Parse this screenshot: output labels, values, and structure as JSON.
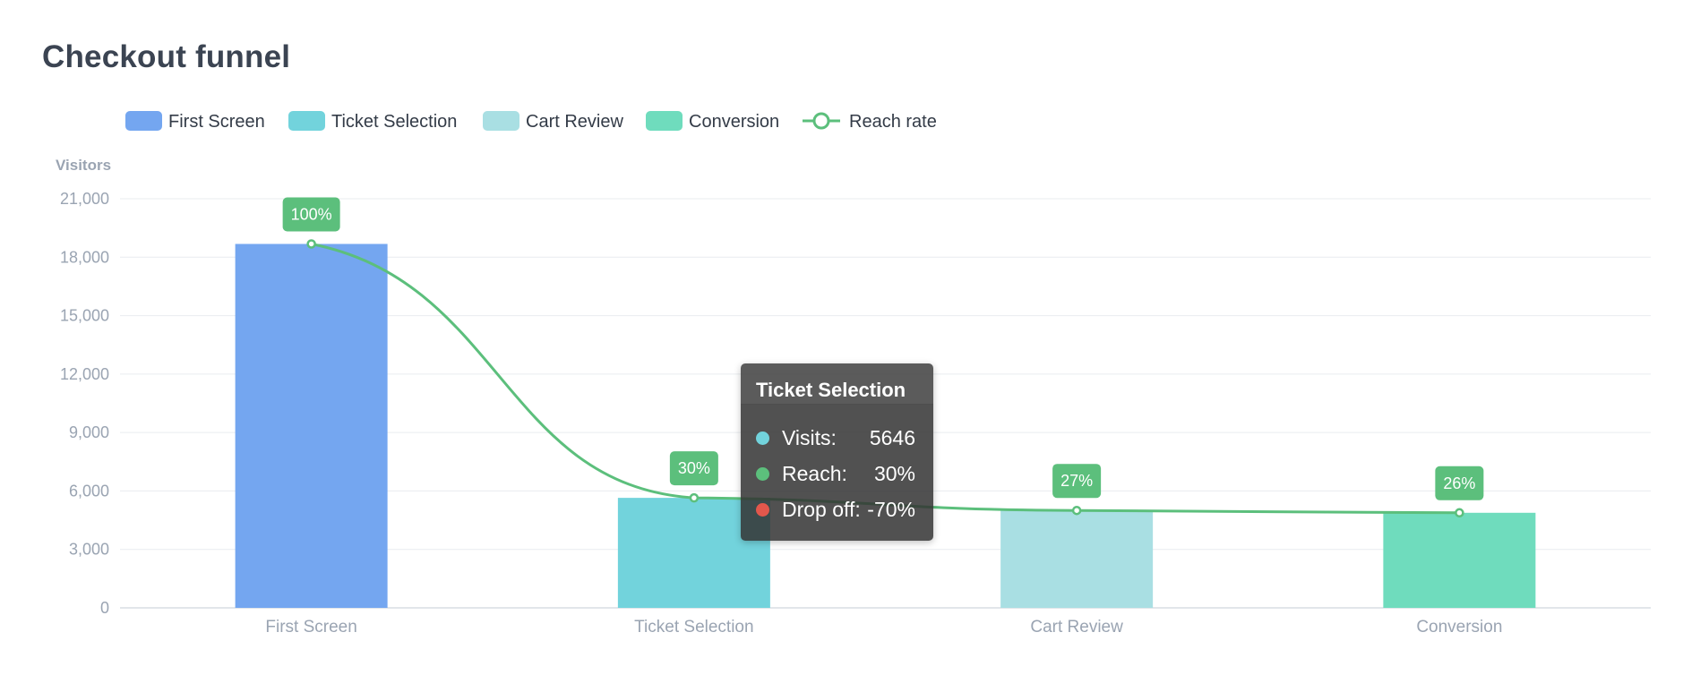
{
  "title": "Checkout funnel",
  "chart_data": {
    "type": "bar",
    "categories": [
      "First Screen",
      "Ticket Selection",
      "Cart Review",
      "Conversion"
    ],
    "values": [
      18680,
      5646,
      5000,
      4880
    ],
    "bar_colors": [
      "#74a6f0",
      "#72d3dc",
      "#a9dfe3",
      "#6fdcbd"
    ],
    "line_series": {
      "name": "Reach rate",
      "color": "#5cbf7c",
      "values_pct": [
        100,
        30,
        27,
        26
      ]
    },
    "data_labels": [
      "100%",
      "30%",
      "27%",
      "26%"
    ],
    "ylabel": "Visitors",
    "ylim": [
      0,
      21000
    ],
    "yticks": [
      0,
      3000,
      6000,
      9000,
      12000,
      15000,
      18000,
      21000
    ],
    "ytick_labels": [
      "0",
      "3,000",
      "6,000",
      "9,000",
      "12,000",
      "15,000",
      "18,000",
      "21,000"
    ],
    "legend": {
      "placement": "top-left",
      "entries": [
        {
          "label": "First Screen",
          "color": "#74a6f0",
          "marker": "bar"
        },
        {
          "label": "Ticket Selection",
          "color": "#72d3dc",
          "marker": "bar"
        },
        {
          "label": "Cart Review",
          "color": "#a9dfe3",
          "marker": "bar"
        },
        {
          "label": "Conversion",
          "color": "#6fdcbd",
          "marker": "bar"
        },
        {
          "label": "Reach rate",
          "color": "#5cbf7c",
          "marker": "line"
        }
      ]
    },
    "grid": true,
    "tooltip": {
      "title": "Ticket Selection",
      "rows": [
        {
          "label": "Visits:",
          "value": "5646",
          "color": "#72d3dc"
        },
        {
          "label": "Reach:",
          "value": "30%",
          "color": "#5cbf7c"
        },
        {
          "label": "Drop off:",
          "value": "-70%",
          "color": "#e2574c"
        }
      ]
    }
  }
}
